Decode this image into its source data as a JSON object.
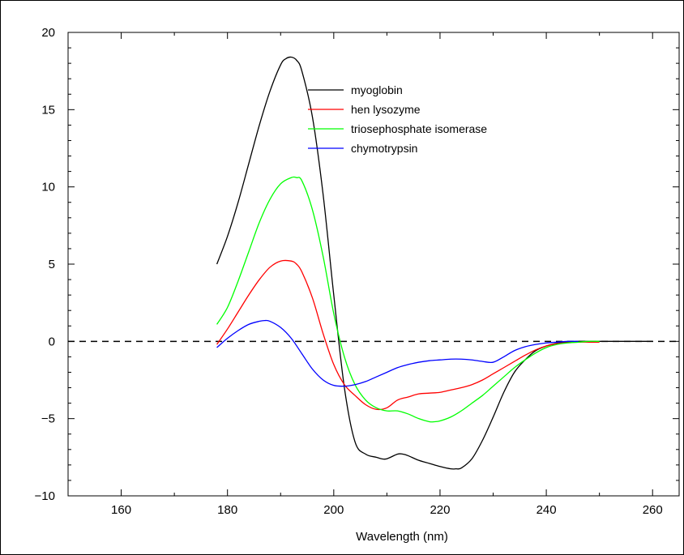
{
  "chart_data": {
    "type": "line",
    "title": "",
    "xlabel": "Wavelength (nm)",
    "ylabel": "",
    "xlim": [
      150,
      265
    ],
    "ylim": [
      -10,
      20
    ],
    "xticks": [
      160,
      180,
      200,
      220,
      240,
      260
    ],
    "xtick_labels": [
      "160",
      "180",
      "200",
      "220",
      "240",
      "260"
    ],
    "yticks": [
      -10,
      -5,
      0,
      5,
      10,
      15,
      20
    ],
    "ytick_labels": [
      "−10",
      "−5",
      "0",
      "5",
      "10",
      "15",
      "20"
    ],
    "zero_line": {
      "style": "dashed",
      "value": 0
    },
    "grid": false,
    "legend_position": "top-center",
    "series": [
      {
        "name": "myoglobin",
        "color": "#000000",
        "x": [
          178,
          180,
          182,
          184,
          186,
          188,
          190,
          191,
          192,
          193,
          194,
          196,
          198,
          200,
          202,
          204,
          206,
          208,
          209,
          210,
          212,
          213,
          214,
          216,
          218,
          220,
          222,
          223,
          224,
          226,
          228,
          230,
          232,
          234,
          236,
          238,
          240,
          242,
          244,
          246,
          248,
          250,
          255,
          260
        ],
        "y": [
          5.0,
          6.8,
          9.0,
          11.5,
          14.0,
          16.2,
          17.9,
          18.3,
          18.4,
          18.2,
          17.5,
          14.5,
          9.5,
          3.0,
          -3.0,
          -6.5,
          -7.3,
          -7.5,
          -7.6,
          -7.6,
          -7.3,
          -7.3,
          -7.4,
          -7.7,
          -7.9,
          -8.1,
          -8.25,
          -8.25,
          -8.2,
          -7.6,
          -6.4,
          -4.9,
          -3.3,
          -2.0,
          -1.2,
          -0.6,
          -0.3,
          -0.12,
          -0.05,
          0.0,
          0.0,
          0.0,
          0.0,
          0.0
        ]
      },
      {
        "name": "hen lysozyme",
        "color": "#ff0000",
        "x": [
          178,
          180,
          182,
          184,
          186,
          188,
          190,
          192,
          193,
          194,
          196,
          198,
          200,
          202,
          204,
          206,
          208,
          210,
          212,
          214,
          216,
          218,
          220,
          222,
          224,
          226,
          228,
          230,
          232,
          234,
          236,
          238,
          240,
          242,
          244,
          246,
          248,
          250
        ],
        "y": [
          -0.2,
          0.8,
          1.9,
          3.0,
          4.0,
          4.8,
          5.2,
          5.2,
          5.0,
          4.5,
          2.8,
          0.5,
          -1.5,
          -2.8,
          -3.5,
          -4.1,
          -4.4,
          -4.3,
          -3.8,
          -3.6,
          -3.4,
          -3.35,
          -3.3,
          -3.15,
          -3.0,
          -2.8,
          -2.5,
          -2.1,
          -1.7,
          -1.3,
          -0.9,
          -0.55,
          -0.3,
          -0.15,
          -0.08,
          -0.05,
          -0.05,
          -0.05
        ]
      },
      {
        "name": "triosephosphate isomerase",
        "color": "#00ff00",
        "x": [
          178,
          180,
          182,
          184,
          186,
          188,
          190,
          192,
          193,
          194,
          196,
          198,
          200,
          202,
          204,
          206,
          208,
          210,
          212,
          214,
          216,
          218,
          219,
          220,
          222,
          224,
          226,
          228,
          230,
          232,
          234,
          236,
          238,
          240,
          242,
          244,
          246,
          248,
          250
        ],
        "y": [
          1.1,
          2.2,
          3.9,
          5.8,
          7.7,
          9.2,
          10.2,
          10.6,
          10.6,
          10.4,
          8.5,
          5.5,
          1.8,
          -1.0,
          -2.8,
          -3.8,
          -4.3,
          -4.5,
          -4.5,
          -4.7,
          -5.0,
          -5.2,
          -5.2,
          -5.15,
          -4.9,
          -4.5,
          -4.0,
          -3.5,
          -2.9,
          -2.3,
          -1.7,
          -1.2,
          -0.75,
          -0.4,
          -0.2,
          -0.1,
          -0.05,
          0.0,
          0.0
        ]
      },
      {
        "name": "chymotrypsin",
        "color": "#0000ff",
        "x": [
          178,
          180,
          182,
          184,
          186,
          187,
          188,
          190,
          192,
          194,
          196,
          198,
          200,
          202,
          204,
          206,
          208,
          210,
          212,
          214,
          216,
          218,
          220,
          222,
          224,
          226,
          228,
          230,
          232,
          234,
          236,
          238,
          240,
          242,
          244,
          246
        ],
        "y": [
          -0.4,
          0.2,
          0.7,
          1.1,
          1.3,
          1.35,
          1.3,
          0.9,
          0.2,
          -0.8,
          -1.8,
          -2.5,
          -2.85,
          -2.9,
          -2.8,
          -2.6,
          -2.3,
          -2.0,
          -1.7,
          -1.5,
          -1.35,
          -1.25,
          -1.2,
          -1.15,
          -1.15,
          -1.2,
          -1.3,
          -1.35,
          -1.0,
          -0.6,
          -0.35,
          -0.2,
          -0.1,
          -0.05,
          0.0,
          0.0
        ]
      }
    ]
  }
}
